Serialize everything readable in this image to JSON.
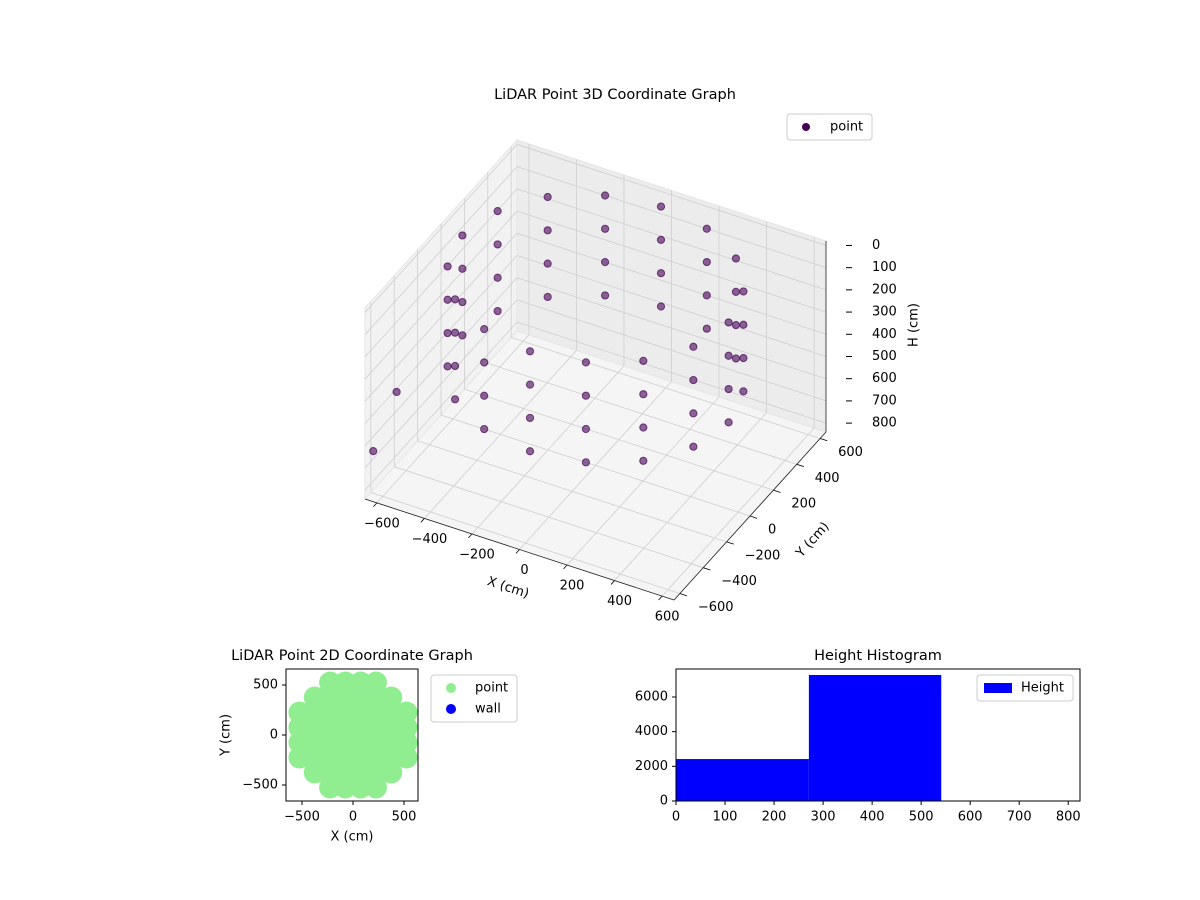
{
  "chart_data": [
    {
      "type": "scatter3d",
      "title": "LiDAR Point 3D Coordinate Graph",
      "xlabel": "X (cm)",
      "ylabel": "Y (cm)",
      "zlabel": "H (cm)",
      "xlim": [
        -650,
        650
      ],
      "ylim": [
        -650,
        650
      ],
      "zlim": [
        840,
        -20
      ],
      "xticks": [
        {
          "value": -600,
          "label": "−600"
        },
        {
          "value": -400,
          "label": "−400"
        },
        {
          "value": -200,
          "label": "−200"
        },
        0,
        200,
        400,
        600
      ],
      "yticks": [
        {
          "value": -600,
          "label": "−600"
        },
        {
          "value": -400,
          "label": "−400"
        },
        {
          "value": -200,
          "label": "−200"
        },
        0,
        200,
        400,
        600
      ],
      "zticks": [
        0,
        100,
        200,
        300,
        400,
        500,
        600,
        700,
        800
      ],
      "grid": true,
      "legend": "upper right",
      "series": [
        {
          "name": "point",
          "color": "#440154",
          "x": [
            560,
            517,
            396,
            214,
            0,
            -214,
            -396,
            -517,
            -560,
            -517,
            -396,
            -214,
            0,
            214,
            396,
            517,
            560,
            517,
            396,
            214,
            0,
            -214,
            -396,
            -517,
            -560,
            -517,
            -396,
            -214,
            0,
            214,
            396,
            517,
            560,
            517,
            396,
            214,
            0,
            -214,
            -396,
            -517,
            -560,
            -517,
            -396,
            -214,
            0,
            214,
            396,
            517,
            560,
            517,
            396,
            214,
            0,
            -214,
            -396,
            -517,
            -560,
            -517,
            -396,
            -214,
            0,
            214,
            396,
            517,
            -640,
            -640
          ],
          "y": [
            0,
            214,
            396,
            517,
            560,
            517,
            396,
            214,
            0,
            -214,
            -396,
            -517,
            -560,
            -517,
            -396,
            -214,
            0,
            214,
            396,
            517,
            560,
            517,
            396,
            214,
            0,
            -214,
            -396,
            -517,
            -560,
            -517,
            -396,
            -214,
            0,
            214,
            396,
            517,
            560,
            517,
            396,
            214,
            0,
            -214,
            -396,
            -517,
            -560,
            -517,
            -396,
            -214,
            0,
            214,
            396,
            517,
            560,
            517,
            396,
            214,
            0,
            -214,
            -396,
            -517,
            -560,
            -517,
            -396,
            -214,
            -400,
            -600
          ],
          "z": [
            0,
            0,
            0,
            0,
            0,
            0,
            0,
            0,
            0,
            0,
            0,
            0,
            0,
            0,
            0,
            0,
            150,
            150,
            150,
            150,
            150,
            150,
            150,
            150,
            150,
            150,
            150,
            150,
            150,
            150,
            150,
            150,
            300,
            300,
            300,
            300,
            300,
            300,
            300,
            300,
            300,
            300,
            300,
            300,
            300,
            300,
            300,
            300,
            450,
            450,
            450,
            450,
            450,
            450,
            450,
            450,
            450,
            450,
            450,
            450,
            450,
            450,
            450,
            450,
            500,
            650
          ]
        }
      ]
    },
    {
      "type": "scatter",
      "title": "LiDAR Point 2D Coordinate Graph",
      "xlabel": "X (cm)",
      "ylabel": "Y (cm)",
      "xlim": [
        -657,
        637
      ],
      "ylim": [
        -660,
        660
      ],
      "xticks": [
        {
          "value": -500,
          "label": "−500"
        },
        0,
        500
      ],
      "yticks": [
        {
          "value": -500,
          "label": "−500"
        },
        0,
        500
      ],
      "legend": "outside upper right",
      "series": [
        {
          "name": "point",
          "color": "#90ee90",
          "x": [
            -525,
            -525,
            -525,
            -525,
            -375,
            -375,
            -375,
            -375,
            -375,
            -375,
            -225,
            -225,
            -225,
            -225,
            -225,
            -225,
            -225,
            -225,
            -75,
            -75,
            -75,
            -75,
            -75,
            -75,
            -75,
            -75,
            75,
            75,
            75,
            75,
            75,
            75,
            75,
            75,
            225,
            225,
            225,
            225,
            225,
            225,
            225,
            225,
            375,
            375,
            375,
            375,
            375,
            375,
            525,
            525,
            525,
            525
          ],
          "y": [
            -225,
            -75,
            75,
            225,
            -375,
            -225,
            -75,
            75,
            225,
            375,
            -525,
            -375,
            -225,
            -75,
            75,
            225,
            375,
            525,
            -525,
            -375,
            -225,
            -75,
            75,
            225,
            375,
            525,
            -525,
            -375,
            -225,
            -75,
            75,
            225,
            375,
            525,
            -525,
            -375,
            -225,
            -75,
            75,
            225,
            375,
            525,
            -375,
            -225,
            -75,
            75,
            225,
            375,
            -225,
            -75,
            75,
            225
          ]
        },
        {
          "name": "wall",
          "color": "#0000ff",
          "x": [],
          "y": []
        }
      ]
    },
    {
      "type": "histogram",
      "title": "Height Histogram",
      "bins": [
        0,
        271,
        541,
        811
      ],
      "values": [
        2420,
        7270,
        0
      ],
      "xlim": [
        0,
        824
      ],
      "ylim": [
        0,
        7615
      ],
      "xticks": [
        0,
        100,
        200,
        300,
        400,
        500,
        600,
        700,
        800
      ],
      "yticks": [
        0,
        2000,
        4000,
        6000
      ],
      "legend": "upper right",
      "series_name": "Height",
      "color": "#0000ff"
    }
  ]
}
